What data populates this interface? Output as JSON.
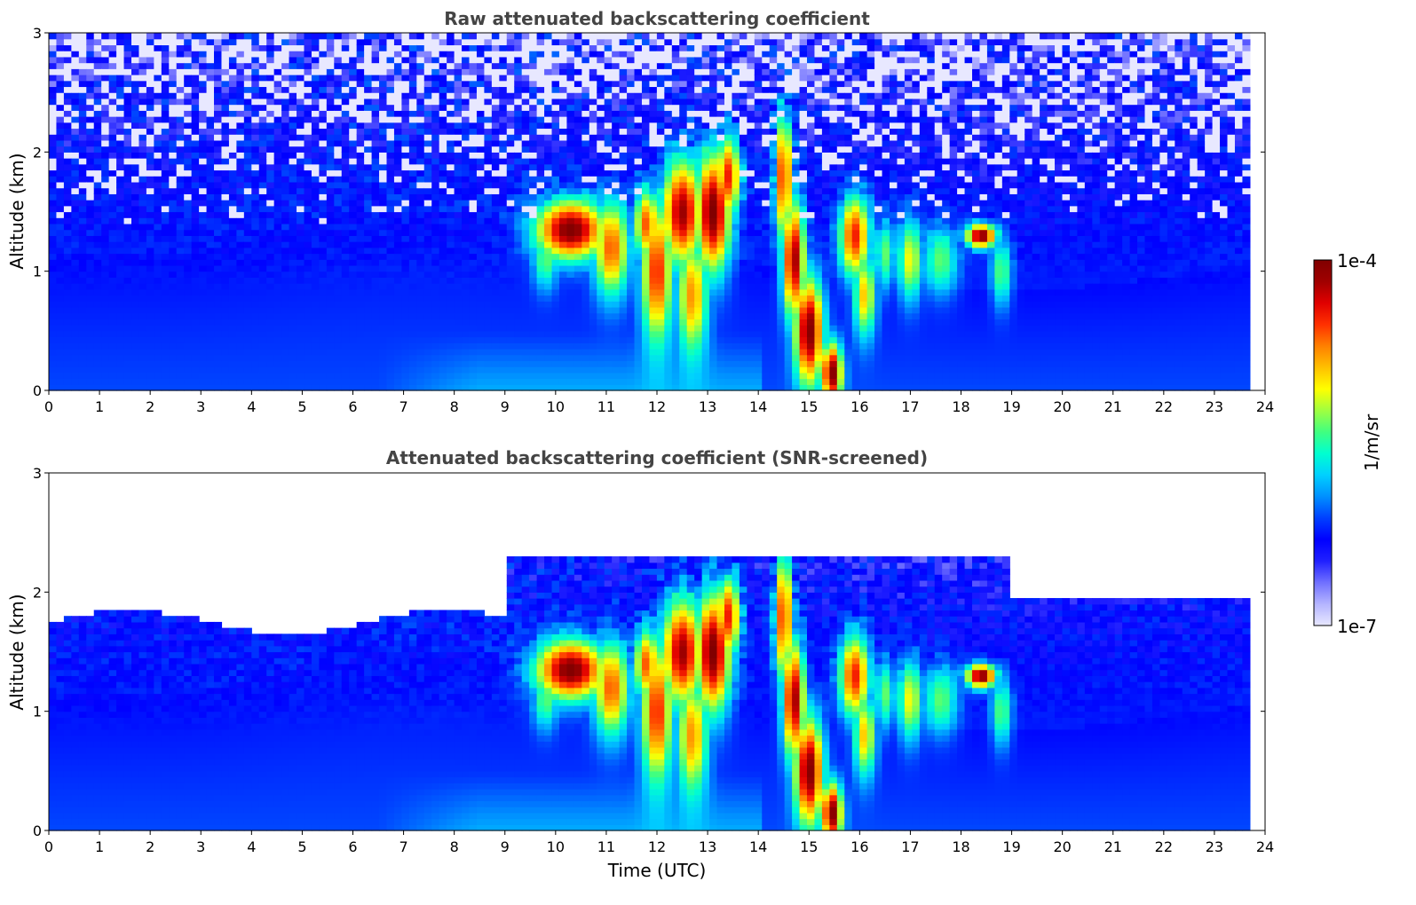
{
  "chart_data": [
    {
      "type": "heatmap",
      "title": "Raw attenuated backscattering coefficient",
      "xlabel": "",
      "ylabel": "Altitude (km)",
      "xlim": [
        0,
        24
      ],
      "ylim": [
        0,
        3
      ],
      "xticks": [
        "0",
        "1",
        "2",
        "3",
        "4",
        "5",
        "6",
        "7",
        "8",
        "9",
        "10",
        "11",
        "12",
        "13",
        "14",
        "15",
        "16",
        "17",
        "18",
        "19",
        "20",
        "21",
        "22",
        "23",
        "24"
      ],
      "yticks": [
        "0",
        "1",
        "2",
        "3"
      ],
      "screened": false,
      "data_end_hour": 23.7,
      "features": [
        {
          "x": 10.3,
          "y": 1.35,
          "dx": 0.7,
          "dy": 0.25,
          "level": 1.0
        },
        {
          "x": 11.1,
          "y": 1.2,
          "dx": 0.35,
          "dy": 0.4,
          "level": 0.8
        },
        {
          "x": 11.8,
          "y": 1.4,
          "dx": 0.25,
          "dy": 0.3,
          "level": 0.8
        },
        {
          "x": 12.0,
          "y": 1.0,
          "dx": 0.3,
          "dy": 0.6,
          "level": 0.85
        },
        {
          "x": 12.5,
          "y": 1.5,
          "dx": 0.4,
          "dy": 0.45,
          "level": 0.95
        },
        {
          "x": 12.7,
          "y": 0.8,
          "dx": 0.3,
          "dy": 0.5,
          "level": 0.75
        },
        {
          "x": 13.1,
          "y": 1.5,
          "dx": 0.35,
          "dy": 0.5,
          "level": 1.0
        },
        {
          "x": 13.4,
          "y": 1.8,
          "dx": 0.25,
          "dy": 0.35,
          "level": 0.85
        },
        {
          "x": 14.5,
          "y": 1.8,
          "dx": 0.18,
          "dy": 0.55,
          "level": 0.85
        },
        {
          "x": 14.7,
          "y": 1.1,
          "dx": 0.22,
          "dy": 0.5,
          "level": 0.95
        },
        {
          "x": 15.0,
          "y": 0.5,
          "dx": 0.28,
          "dy": 0.45,
          "level": 1.0
        },
        {
          "x": 15.45,
          "y": 0.15,
          "dx": 0.2,
          "dy": 0.25,
          "level": 1.0
        },
        {
          "x": 15.9,
          "y": 1.3,
          "dx": 0.3,
          "dy": 0.35,
          "level": 0.85
        },
        {
          "x": 16.1,
          "y": 0.8,
          "dx": 0.22,
          "dy": 0.35,
          "level": 0.7
        },
        {
          "x": 16.5,
          "y": 1.15,
          "dx": 0.2,
          "dy": 0.3,
          "level": 0.55
        },
        {
          "x": 17.0,
          "y": 1.1,
          "dx": 0.25,
          "dy": 0.35,
          "level": 0.65
        },
        {
          "x": 17.6,
          "y": 1.1,
          "dx": 0.35,
          "dy": 0.3,
          "level": 0.55
        },
        {
          "x": 18.4,
          "y": 1.3,
          "dx": 0.3,
          "dy": 0.1,
          "level": 1.0
        },
        {
          "x": 18.8,
          "y": 1.0,
          "dx": 0.2,
          "dy": 0.3,
          "level": 0.55
        },
        {
          "x": 9.8,
          "y": 1.1,
          "dx": 0.25,
          "dy": 0.25,
          "level": 0.55
        }
      ]
    },
    {
      "type": "heatmap",
      "title": "Attenuated backscattering coefficient (SNR-screened)",
      "xlabel": "Time (UTC)",
      "ylabel": "Altitude (km)",
      "xlim": [
        0,
        24
      ],
      "ylim": [
        0,
        3
      ],
      "xticks": [
        "0",
        "1",
        "2",
        "3",
        "4",
        "5",
        "6",
        "7",
        "8",
        "9",
        "10",
        "11",
        "12",
        "13",
        "14",
        "15",
        "16",
        "17",
        "18",
        "19",
        "20",
        "21",
        "22",
        "23",
        "24"
      ],
      "yticks": [
        "0",
        "1",
        "2",
        "3"
      ],
      "screened": true,
      "data_end_hour": 23.7,
      "features": [
        {
          "x": 10.3,
          "y": 1.35,
          "dx": 0.7,
          "dy": 0.25,
          "level": 1.0
        },
        {
          "x": 11.1,
          "y": 1.2,
          "dx": 0.35,
          "dy": 0.4,
          "level": 0.8
        },
        {
          "x": 11.8,
          "y": 1.4,
          "dx": 0.25,
          "dy": 0.3,
          "level": 0.8
        },
        {
          "x": 12.0,
          "y": 1.0,
          "dx": 0.3,
          "dy": 0.6,
          "level": 0.85
        },
        {
          "x": 12.5,
          "y": 1.5,
          "dx": 0.4,
          "dy": 0.45,
          "level": 0.95
        },
        {
          "x": 12.7,
          "y": 0.8,
          "dx": 0.3,
          "dy": 0.5,
          "level": 0.75
        },
        {
          "x": 13.1,
          "y": 1.5,
          "dx": 0.35,
          "dy": 0.5,
          "level": 1.0
        },
        {
          "x": 13.4,
          "y": 1.8,
          "dx": 0.25,
          "dy": 0.35,
          "level": 0.85
        },
        {
          "x": 14.5,
          "y": 1.8,
          "dx": 0.18,
          "dy": 0.55,
          "level": 0.85
        },
        {
          "x": 14.7,
          "y": 1.1,
          "dx": 0.22,
          "dy": 0.5,
          "level": 0.95
        },
        {
          "x": 15.0,
          "y": 0.5,
          "dx": 0.28,
          "dy": 0.45,
          "level": 1.0
        },
        {
          "x": 15.45,
          "y": 0.15,
          "dx": 0.2,
          "dy": 0.25,
          "level": 1.0
        },
        {
          "x": 15.9,
          "y": 1.3,
          "dx": 0.3,
          "dy": 0.35,
          "level": 0.85
        },
        {
          "x": 16.1,
          "y": 0.8,
          "dx": 0.22,
          "dy": 0.35,
          "level": 0.7
        },
        {
          "x": 16.5,
          "y": 1.15,
          "dx": 0.2,
          "dy": 0.3,
          "level": 0.55
        },
        {
          "x": 17.0,
          "y": 1.1,
          "dx": 0.25,
          "dy": 0.35,
          "level": 0.65
        },
        {
          "x": 17.6,
          "y": 1.1,
          "dx": 0.35,
          "dy": 0.3,
          "level": 0.55
        },
        {
          "x": 18.4,
          "y": 1.3,
          "dx": 0.3,
          "dy": 0.1,
          "level": 1.0
        },
        {
          "x": 18.8,
          "y": 1.0,
          "dx": 0.2,
          "dy": 0.3,
          "level": 0.55
        },
        {
          "x": 9.8,
          "y": 1.1,
          "dx": 0.25,
          "dy": 0.25,
          "level": 0.55
        }
      ]
    }
  ],
  "colorbar": {
    "label": "1/m/sr",
    "max_label": "1e-4",
    "min_label": "1e-7",
    "colors": [
      "#e8e8ff",
      "#b4b4ff",
      "#7070ff",
      "#2020ff",
      "#0000ff",
      "#0040ff",
      "#0090ff",
      "#00d0ff",
      "#00ffd0",
      "#40ff80",
      "#a0ff40",
      "#ffff00",
      "#ffc000",
      "#ff8000",
      "#ff3000",
      "#e00000",
      "#a00000",
      "#800000"
    ]
  }
}
